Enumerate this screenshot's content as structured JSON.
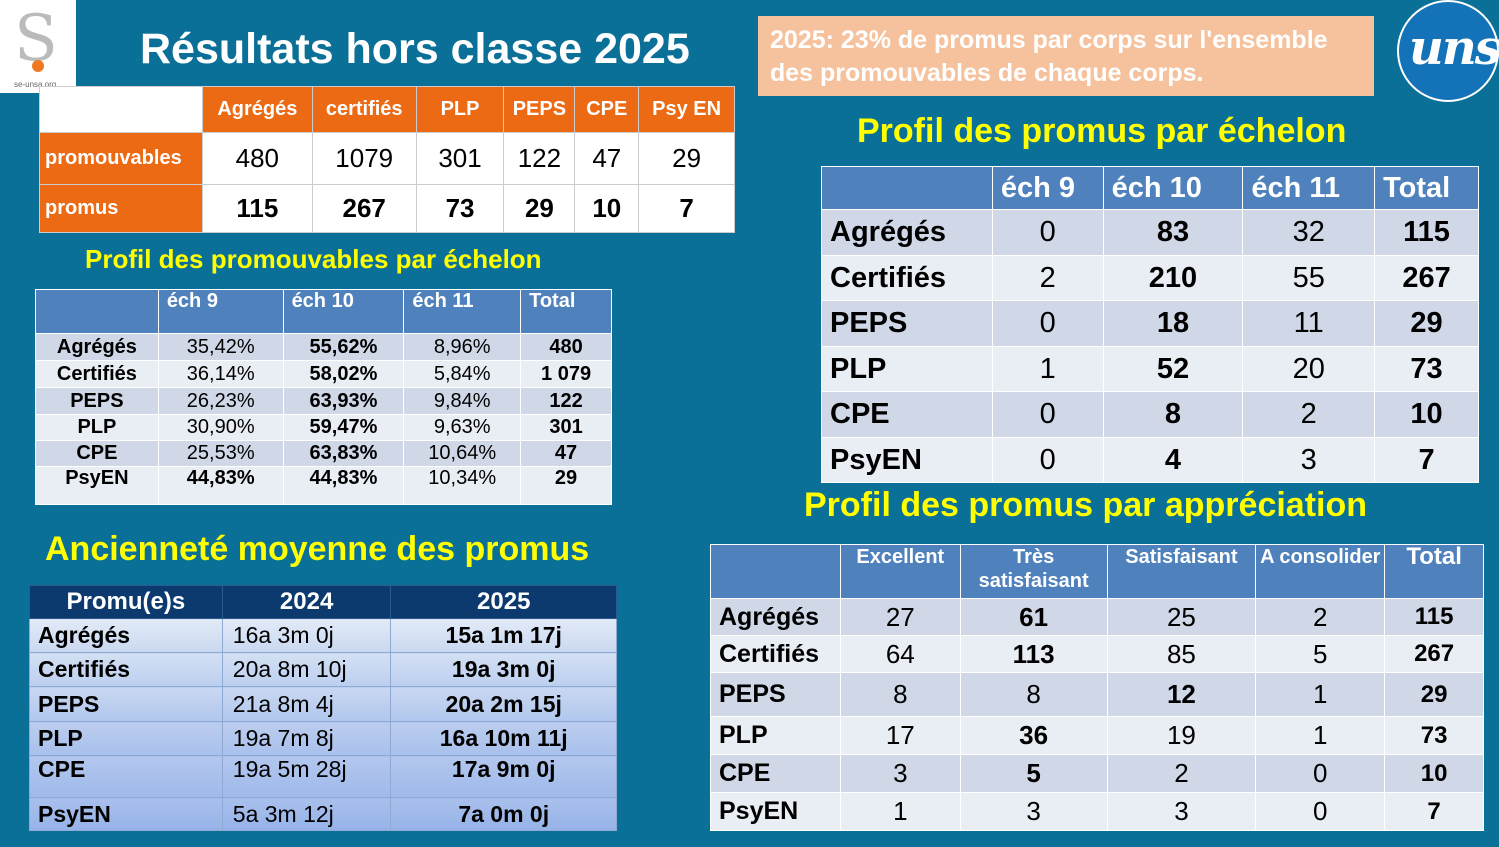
{
  "logos": {
    "se_text": "se-unsa.org",
    "unsa_text": "unsa"
  },
  "title": "Résultats hors classe 2025",
  "note": "2025: 23% de promus par corps sur l'ensemble des promouvables de chaque corps.",
  "summary": {
    "headers": [
      "Agrégés",
      "certifiés",
      "PLP",
      "PEPS",
      "CPE",
      "Psy EN"
    ],
    "rows": [
      {
        "label": "promouvables",
        "values": [
          "480",
          "1079",
          "301",
          "122",
          "47",
          "29"
        ]
      },
      {
        "label": "promus",
        "values": [
          "115",
          "267",
          "73",
          "29",
          "10",
          "7"
        ]
      }
    ]
  },
  "promouvables_profile": {
    "title": "Profil des promouvables par échelon",
    "headers": [
      "",
      "éch 9",
      "éch 10",
      "éch 11",
      "Total"
    ],
    "rows": [
      {
        "label": "Agrégés",
        "values": [
          "35,42%",
          "55,62%",
          "8,96%",
          "480"
        ]
      },
      {
        "label": "Certifiés",
        "values": [
          "36,14%",
          "58,02%",
          "5,84%",
          "1 079"
        ]
      },
      {
        "label": "PEPS",
        "values": [
          "26,23%",
          "63,93%",
          "9,84%",
          "122"
        ]
      },
      {
        "label": "PLP",
        "values": [
          "30,90%",
          "59,47%",
          "9,63%",
          "301"
        ]
      },
      {
        "label": "CPE",
        "values": [
          "25,53%",
          "63,83%",
          "10,64%",
          "47"
        ]
      },
      {
        "label": "PsyEN",
        "values": [
          "44,83%",
          "44,83%",
          "10,34%",
          "29"
        ]
      }
    ]
  },
  "promus_echelon": {
    "title": "Profil des promus par échelon",
    "headers": [
      "",
      "éch 9",
      "éch 10",
      "éch 11",
      "Total"
    ],
    "rows": [
      {
        "label": "Agrégés",
        "values": [
          "0",
          "83",
          "32",
          "115"
        ]
      },
      {
        "label": "Certifiés",
        "values": [
          "2",
          "210",
          "55",
          "267"
        ]
      },
      {
        "label": "PEPS",
        "values": [
          "0",
          "18",
          "11",
          "29"
        ]
      },
      {
        "label": "PLP",
        "values": [
          "1",
          "52",
          "20",
          "73"
        ]
      },
      {
        "label": "CPE",
        "values": [
          "0",
          "8",
          "2",
          "10"
        ]
      },
      {
        "label": "PsyEN",
        "values": [
          "0",
          "4",
          "3",
          "7"
        ]
      }
    ]
  },
  "promus_appreciation": {
    "title": "Profil des promus par appréciation",
    "headers": [
      "",
      "Excellent",
      "Très satisfaisant",
      "Satisfaisant",
      "A consolider",
      "Total"
    ],
    "rows": [
      {
        "label": "Agrégés",
        "values": [
          "27",
          "61",
          "25",
          "2",
          "115"
        ]
      },
      {
        "label": "Certifiés",
        "values": [
          "64",
          "113",
          "85",
          "5",
          "267"
        ]
      },
      {
        "label": "PEPS",
        "values": [
          "8",
          "8",
          "12",
          "1",
          "29"
        ]
      },
      {
        "label": "PLP",
        "values": [
          "17",
          "36",
          "19",
          "1",
          "73"
        ]
      },
      {
        "label": "CPE",
        "values": [
          "3",
          "5",
          "2",
          "0",
          "10"
        ]
      },
      {
        "label": "PsyEN",
        "values": [
          "1",
          "3",
          "3",
          "0",
          "7"
        ]
      }
    ]
  },
  "anciennete": {
    "title": "Ancienneté moyenne des promus",
    "headers": [
      "Promu(e)s",
      "2024",
      "2025"
    ],
    "rows": [
      {
        "label": "Agrégés",
        "values": [
          "16a 3m 0j",
          "15a 1m 17j"
        ]
      },
      {
        "label": "Certifiés",
        "values": [
          "20a 8m 10j",
          "19a 3m 0j"
        ]
      },
      {
        "label": "PEPS",
        "values": [
          "21a 8m 4j",
          "20a 2m 15j"
        ]
      },
      {
        "label": "PLP",
        "values": [
          "19a 7m 8j",
          "16a 10m 11j"
        ]
      },
      {
        "label": "CPE",
        "values": [
          "19a 5m 28j",
          "17a 9m 0j"
        ]
      },
      {
        "label": "PsyEN",
        "values": [
          "5a 3m 12j",
          "7a 0m 0j"
        ]
      }
    ]
  },
  "colors": {
    "background": "#0a7097",
    "orange": "#ec6a14",
    "yellow_title": "#ffff00",
    "header_blue": "#4f81bd",
    "note_bg": "#f6c29e"
  }
}
